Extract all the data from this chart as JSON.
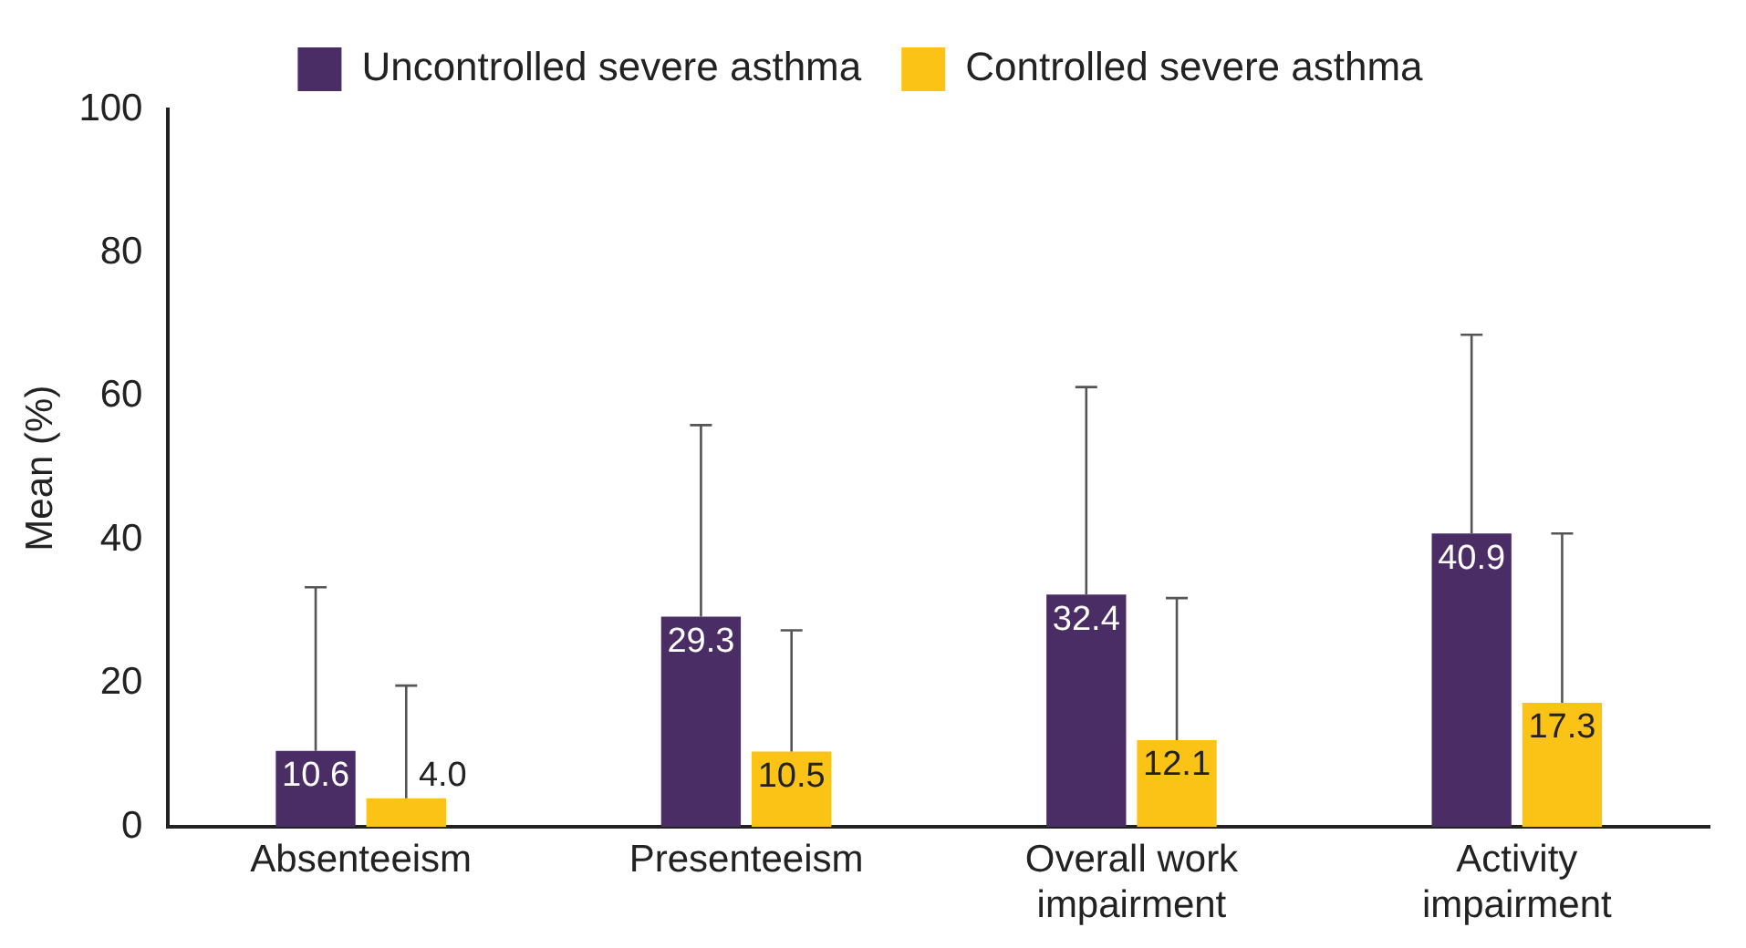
{
  "chart_data": {
    "type": "bar",
    "ylabel": "Mean (%)",
    "categories": [
      "Absenteeism",
      "Presenteeism",
      "Overall work impairment",
      "Activity impairment"
    ],
    "series": [
      {
        "name": "Uncontrolled severe asthma",
        "color": "#4b2d66",
        "values": [
          10.6,
          29.3,
          32.4,
          40.9
        ],
        "value_labels": [
          "10.6",
          "29.3",
          "32.4",
          "40.9"
        ],
        "errors": [
          [
            10.6,
            33.4
          ],
          [
            29.3,
            56.0
          ],
          [
            32.4,
            61.3
          ],
          [
            40.9,
            68.6
          ]
        ]
      },
      {
        "name": "Controlled severe asthma",
        "color": "#fbc316",
        "values": [
          4.0,
          10.5,
          12.1,
          17.3
        ],
        "value_labels": [
          "4.0",
          "10.5",
          "12.1",
          "17.3"
        ],
        "errors": [
          [
            4.0,
            19.7
          ],
          [
            10.5,
            27.4
          ],
          [
            12.1,
            31.9
          ],
          [
            17.3,
            40.9
          ]
        ]
      }
    ],
    "ylim": [
      0,
      100
    ],
    "yticks": [
      0,
      20,
      40,
      60,
      80,
      100
    ],
    "grid": false,
    "legend": "top"
  }
}
